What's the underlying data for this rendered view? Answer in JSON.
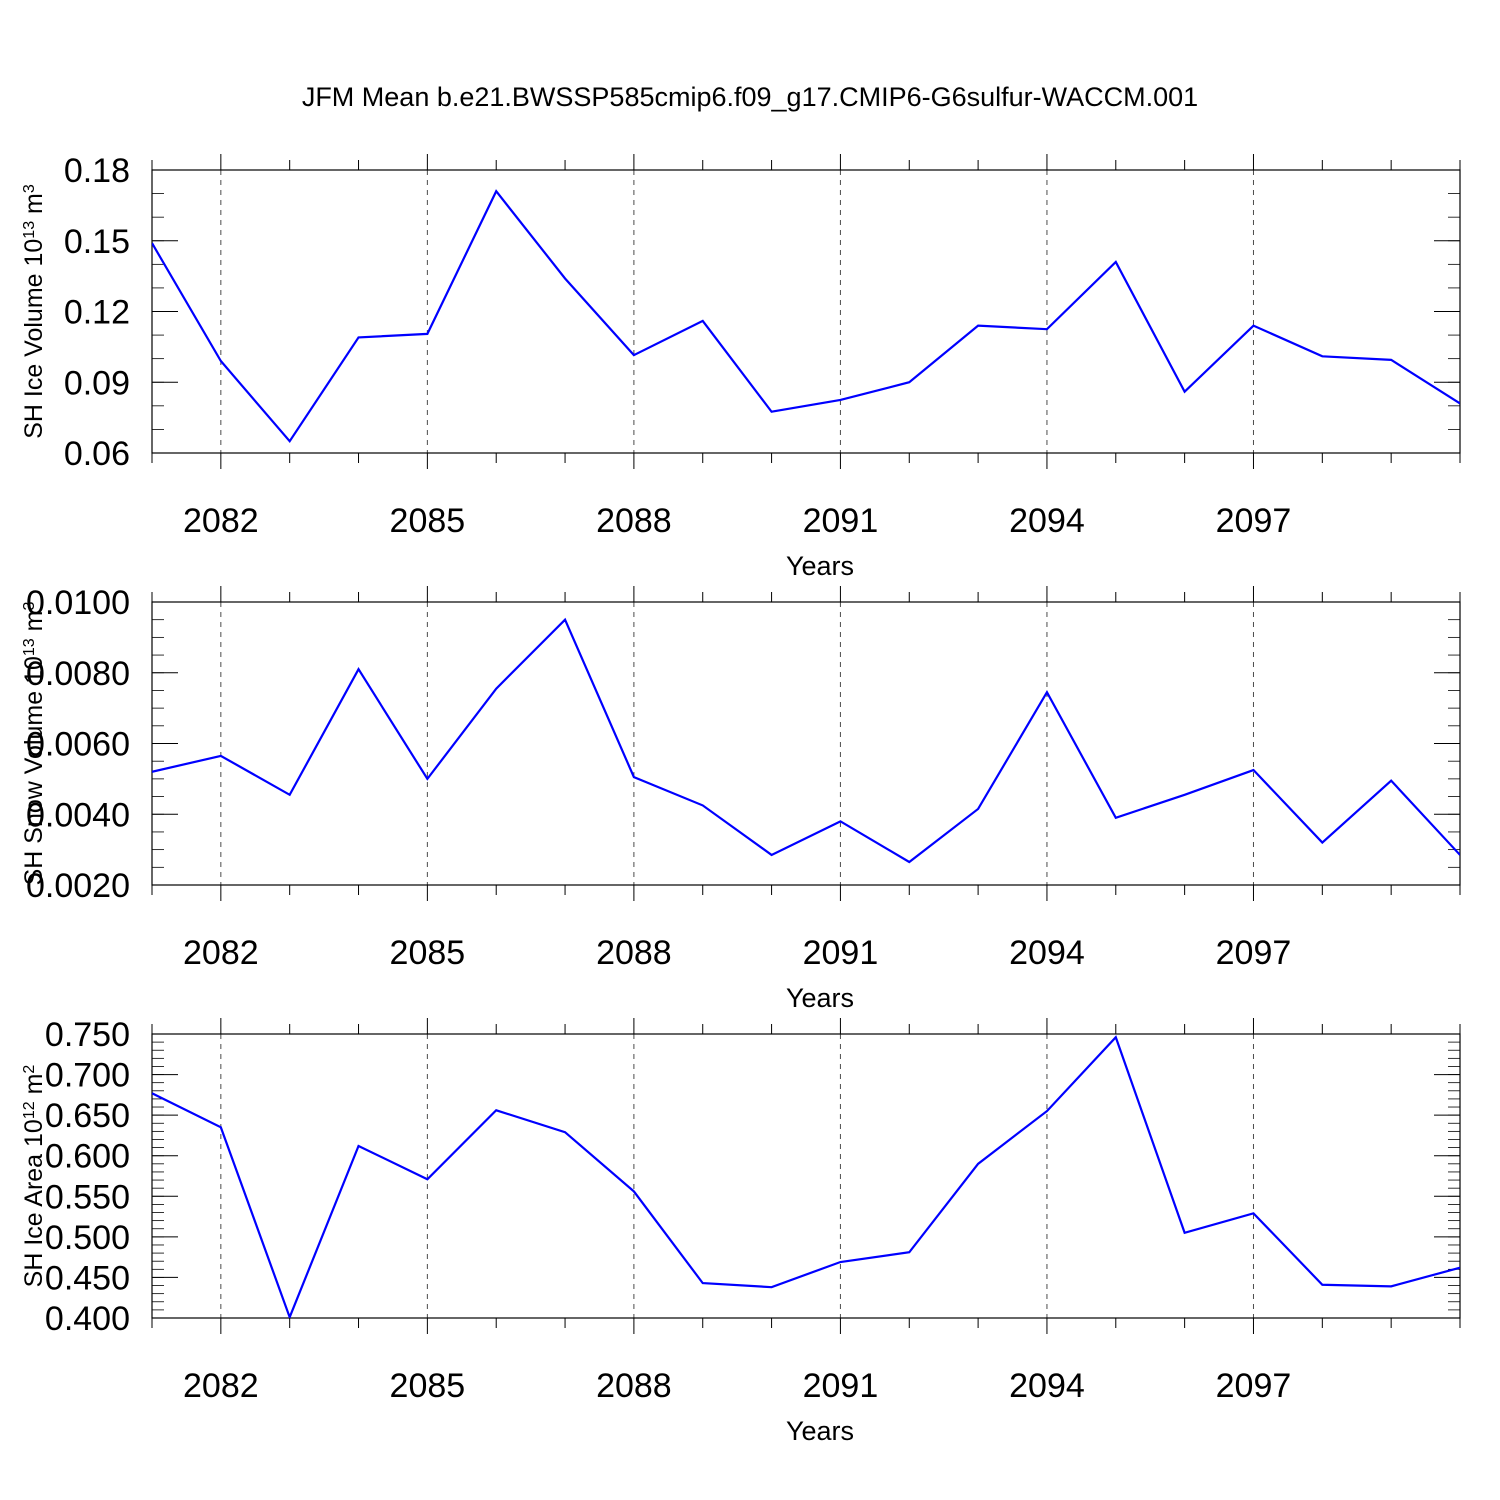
{
  "title": "JFM Mean b.e21.BWSSP585cmip6.f09_g17.CMIP6-G6sulfur-WACCM.001",
  "colors": {
    "line": "#0000ff",
    "axis": "#000000",
    "grid": "#000000"
  },
  "chart_data": [
    {
      "type": "line",
      "ylabel": {
        "main": "SH Ice Volume 10",
        "sup": "13",
        "unit": " m",
        "unit_sup": "3"
      },
      "xlabel": "Years",
      "xlim": [
        2081,
        2100
      ],
      "ylim": [
        0.06,
        0.18
      ],
      "grid": "vertical-dashed-at-major",
      "x_ticks": [
        2082,
        2085,
        2088,
        2091,
        2094,
        2097
      ],
      "y_ticks": [
        "0.06",
        "0.09",
        "0.12",
        "0.15",
        "0.18"
      ],
      "y_minor_step": 0.01,
      "x": [
        2081,
        2082,
        2083,
        2084,
        2085,
        2086,
        2087,
        2088,
        2089,
        2090,
        2091,
        2092,
        2093,
        2094,
        2095,
        2096,
        2097,
        2098,
        2099,
        2100
      ],
      "values": [
        0.149,
        0.099,
        0.065,
        0.109,
        0.1105,
        0.171,
        0.134,
        0.1015,
        0.116,
        0.0775,
        0.0825,
        0.09,
        0.114,
        0.1125,
        0.141,
        0.086,
        0.114,
        0.101,
        0.0995,
        0.081
      ]
    },
    {
      "type": "line",
      "ylabel": {
        "main": "SH Snow Volume 10",
        "sup": "13",
        "unit": " m",
        "unit_sup": "3"
      },
      "xlabel": "Years",
      "xlim": [
        2081,
        2100
      ],
      "ylim": [
        0.002,
        0.01
      ],
      "grid": "vertical-dashed-at-major",
      "x_ticks": [
        2082,
        2085,
        2088,
        2091,
        2094,
        2097
      ],
      "y_ticks": [
        "0.0020",
        "0.0040",
        "0.0060",
        "0.0080",
        "0.0100"
      ],
      "y_minor_step": 0.0005,
      "x": [
        2081,
        2082,
        2083,
        2084,
        2085,
        2086,
        2087,
        2088,
        2089,
        2090,
        2091,
        2092,
        2093,
        2094,
        2095,
        2096,
        2097,
        2098,
        2099,
        2100
      ],
      "values": [
        0.0052,
        0.00565,
        0.00455,
        0.0081,
        0.005,
        0.00755,
        0.0095,
        0.00505,
        0.00425,
        0.00285,
        0.0038,
        0.00265,
        0.00415,
        0.00745,
        0.0039,
        0.00455,
        0.00525,
        0.0032,
        0.00495,
        0.00285
      ]
    },
    {
      "type": "line",
      "ylabel": {
        "main": "SH Ice Area 10",
        "sup": "12",
        "unit": " m",
        "unit_sup": "2"
      },
      "xlabel": "Years",
      "xlim": [
        2081,
        2100
      ],
      "ylim": [
        0.4,
        0.75
      ],
      "grid": "vertical-dashed-at-major",
      "x_ticks": [
        2082,
        2085,
        2088,
        2091,
        2094,
        2097
      ],
      "y_ticks": [
        "0.400",
        "0.450",
        "0.500",
        "0.550",
        "0.600",
        "0.650",
        "0.700",
        "0.750"
      ],
      "y_minor_step": 0.01,
      "x": [
        2081,
        2082,
        2083,
        2084,
        2085,
        2086,
        2087,
        2088,
        2089,
        2090,
        2091,
        2092,
        2093,
        2094,
        2095,
        2096,
        2097,
        2098,
        2099,
        2100
      ],
      "values": [
        0.677,
        0.635,
        0.401,
        0.612,
        0.571,
        0.656,
        0.629,
        0.556,
        0.443,
        0.438,
        0.469,
        0.481,
        0.59,
        0.655,
        0.746,
        0.505,
        0.529,
        0.441,
        0.439,
        0.462
      ]
    }
  ]
}
